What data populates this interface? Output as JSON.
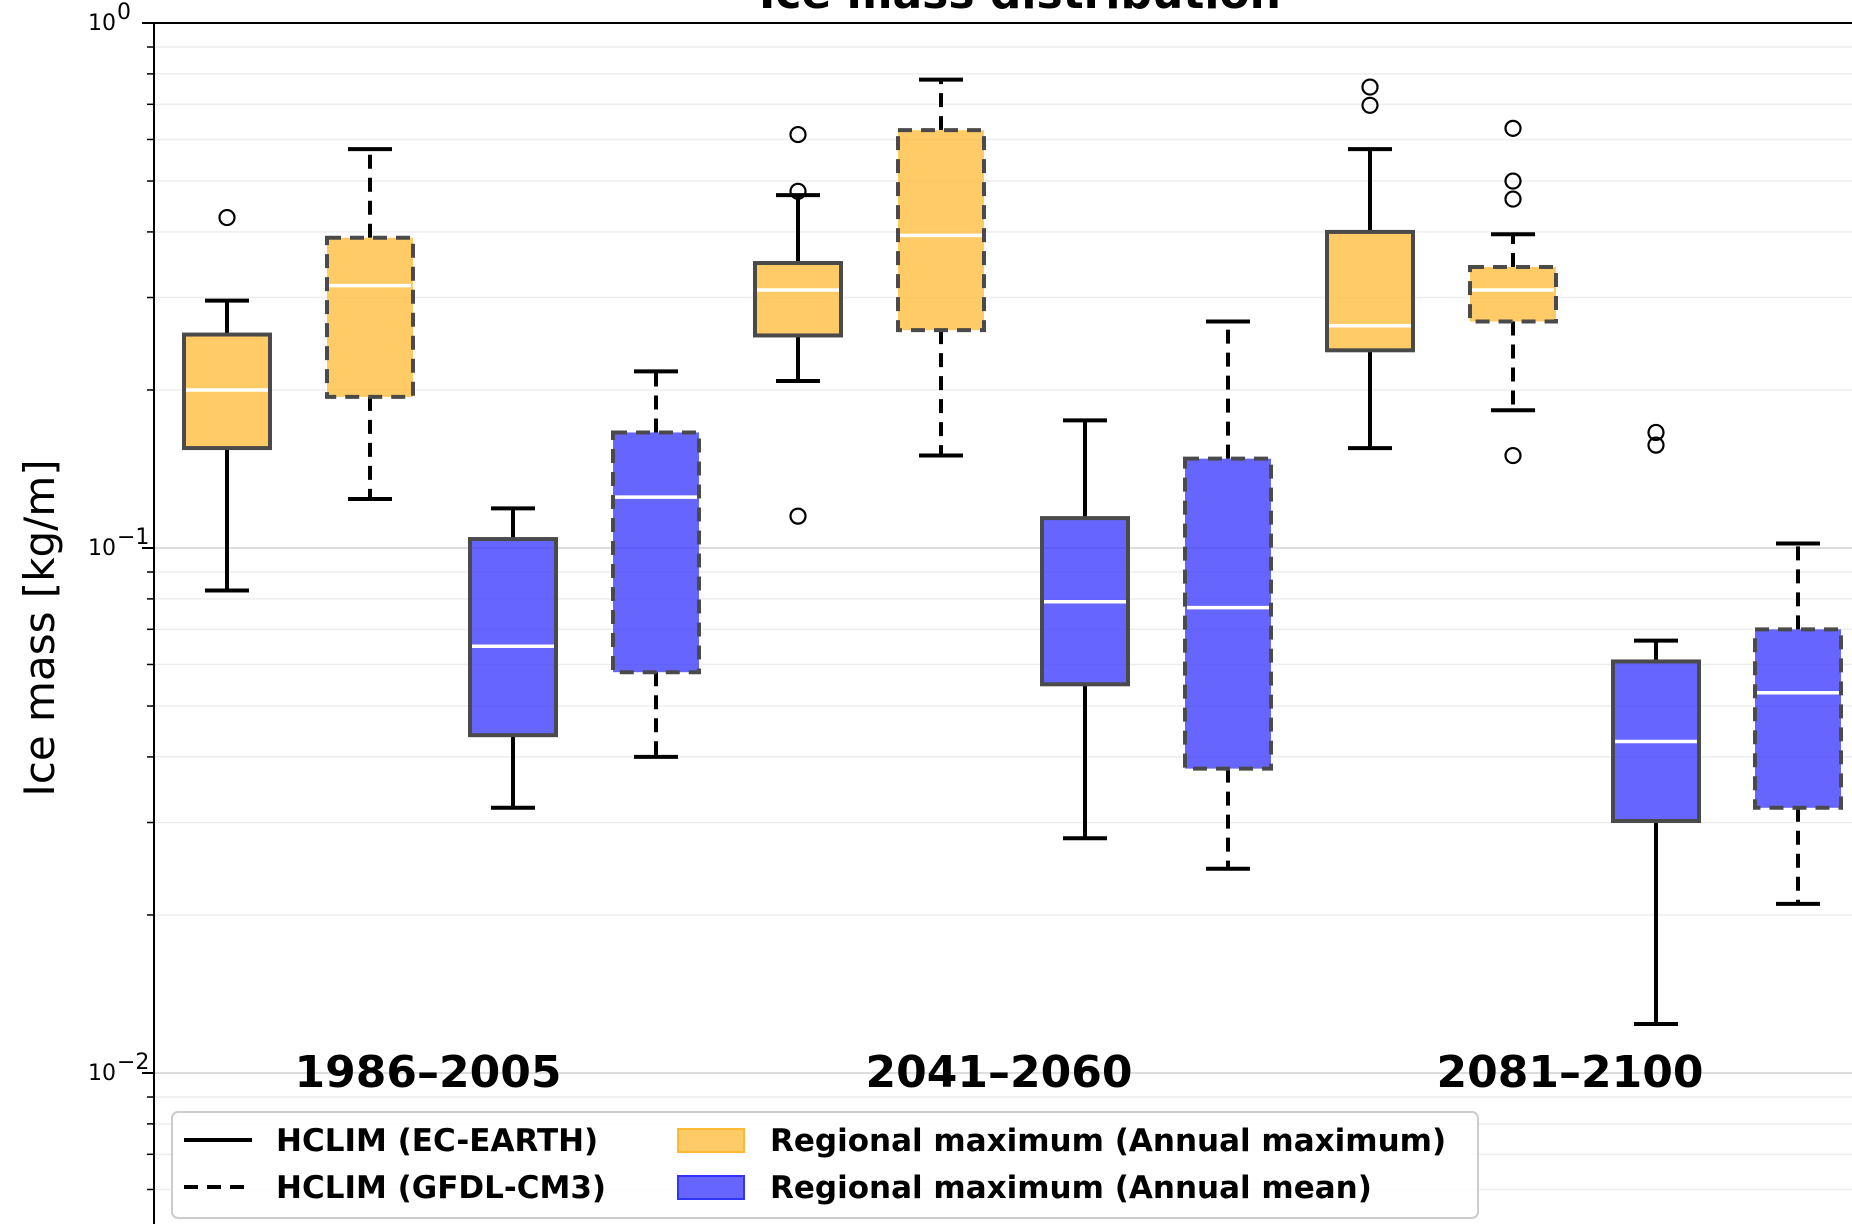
{
  "chart_data": {
    "type": "boxplot",
    "title": "Ice mass distribution",
    "ylabel": "Ice mass [kg/m]",
    "yscale": "log",
    "ylim": [
      0.006,
      1.0
    ],
    "y_ticks": [
      {
        "value": 1.0,
        "base": "10",
        "exp": "0"
      },
      {
        "value": 0.1,
        "base": "10",
        "exp": "−1"
      },
      {
        "value": 0.01,
        "base": "10",
        "exp": "−2"
      }
    ],
    "grid": true,
    "periods": [
      "1986–2005",
      "2041–2060",
      "2081–2100"
    ],
    "colors": {
      "annual_maximum": "#FDB933",
      "annual_mean": "#3333FF"
    },
    "legend": {
      "placement": "bottom-left",
      "entries": [
        {
          "label": "HCLIM (EC-EARTH)",
          "style": "solid-line"
        },
        {
          "label": "HCLIM (GFDL-CM3)",
          "style": "dashed-line"
        },
        {
          "label": "Regional maximum (Annual maximum)",
          "style": "patch",
          "color_key": "annual_maximum"
        },
        {
          "label": "Regional maximum (Annual mean)",
          "style": "patch",
          "color_key": "annual_mean"
        }
      ]
    },
    "boxes": [
      {
        "period": "1986–2005",
        "model": "HCLIM (EC-EARTH)",
        "series": "annual_maximum",
        "whislo": 0.083,
        "q1": 0.155,
        "med": 0.2,
        "q3": 0.255,
        "whishi": 0.296,
        "fliers": [
          0.426
        ]
      },
      {
        "period": "1986–2005",
        "model": "HCLIM (GFDL-CM3)",
        "series": "annual_maximum",
        "whislo": 0.124,
        "q1": 0.194,
        "med": 0.316,
        "q3": 0.39,
        "whishi": 0.575,
        "fliers": []
      },
      {
        "period": "1986–2005",
        "model": "HCLIM (EC-EARTH)",
        "series": "annual_mean",
        "whislo": 0.032,
        "q1": 0.044,
        "med": 0.065,
        "q3": 0.104,
        "whishi": 0.119,
        "fliers": []
      },
      {
        "period": "1986–2005",
        "model": "HCLIM (GFDL-CM3)",
        "series": "annual_mean",
        "whislo": 0.04,
        "q1": 0.058,
        "med": 0.125,
        "q3": 0.166,
        "whishi": 0.217,
        "fliers": []
      },
      {
        "period": "2041–2060",
        "model": "HCLIM (EC-EARTH)",
        "series": "annual_maximum",
        "whislo": 0.208,
        "q1": 0.254,
        "med": 0.31,
        "q3": 0.349,
        "whishi": 0.47,
        "fliers": [
          0.115,
          0.478,
          0.613
        ]
      },
      {
        "period": "2041–2060",
        "model": "HCLIM (GFDL-CM3)",
        "series": "annual_maximum",
        "whislo": 0.15,
        "q1": 0.26,
        "med": 0.394,
        "q3": 0.625,
        "whishi": 0.78,
        "fliers": []
      },
      {
        "period": "2041–2060",
        "model": "HCLIM (EC-EARTH)",
        "series": "annual_mean",
        "whislo": 0.028,
        "q1": 0.055,
        "med": 0.079,
        "q3": 0.114,
        "whishi": 0.175,
        "fliers": []
      },
      {
        "period": "2041–2060",
        "model": "HCLIM (GFDL-CM3)",
        "series": "annual_mean",
        "whislo": 0.0245,
        "q1": 0.038,
        "med": 0.077,
        "q3": 0.148,
        "whishi": 0.27,
        "fliers": []
      },
      {
        "period": "2081–2100",
        "model": "HCLIM (EC-EARTH)",
        "series": "annual_maximum",
        "whislo": 0.155,
        "q1": 0.238,
        "med": 0.265,
        "q3": 0.4,
        "whishi": 0.575,
        "fliers": [
          0.697,
          0.755
        ]
      },
      {
        "period": "2081–2100",
        "model": "HCLIM (GFDL-CM3)",
        "series": "annual_maximum",
        "whislo": 0.183,
        "q1": 0.27,
        "med": 0.31,
        "q3": 0.343,
        "whishi": 0.396,
        "fliers": [
          0.15,
          0.462,
          0.5,
          0.63
        ]
      },
      {
        "period": "2081–2100",
        "model": "HCLIM (EC-EARTH)",
        "series": "annual_mean",
        "whislo": 0.0124,
        "q1": 0.0302,
        "med": 0.0428,
        "q3": 0.0608,
        "whishi": 0.0666,
        "fliers": [
          0.157,
          0.166
        ]
      },
      {
        "period": "2081–2100",
        "model": "HCLIM (GFDL-CM3)",
        "series": "annual_mean",
        "whislo": 0.021,
        "q1": 0.032,
        "med": 0.053,
        "q3": 0.07,
        "whishi": 0.102,
        "fliers": []
      }
    ]
  }
}
